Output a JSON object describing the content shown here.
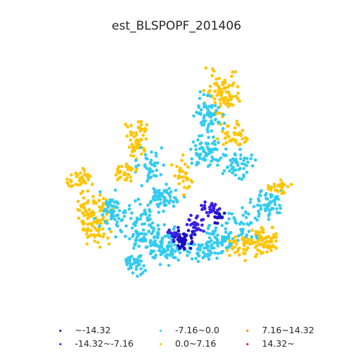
{
  "title": "est_BLSPOPF_201406",
  "legend": [
    {
      "label": "~-14.32",
      "color": "#0d0887"
    },
    {
      "label": "-14.32~-7.16",
      "color": "#3b22e6"
    },
    {
      "label": "-7.16~0.0",
      "color": "#33cbef"
    },
    {
      "label": "0.0~7.16",
      "color": "#ffc400"
    },
    {
      "label": "7.16~14.32",
      "color": "#ff7a00"
    },
    {
      "label": "14.32~",
      "color": "#d7191c"
    }
  ],
  "palette": {
    "dark": "#1a0bc4",
    "blue": "#3b22e6",
    "cyan": "#33cbef",
    "yellow": "#ffc400"
  }
}
